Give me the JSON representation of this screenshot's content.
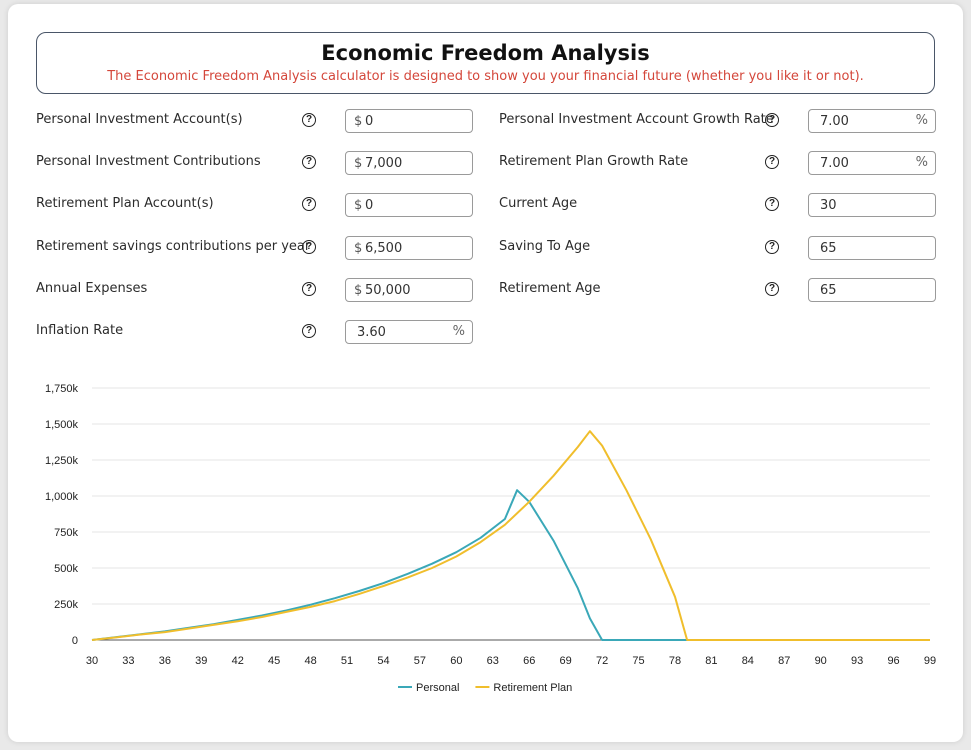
{
  "header": {
    "title": "Economic Freedom Analysis",
    "subtitle": "The Economic Freedom Analysis calculator is designed to show you your financial future (whether you like it or not)."
  },
  "help_glyph": "?",
  "fields": {
    "personal_investment": {
      "label": "Personal Investment Account(s)",
      "prefix": "$",
      "value": "0",
      "suffix": ""
    },
    "personal_contributions": {
      "label": "Personal Investment Contributions",
      "prefix": "$",
      "value": "7,000",
      "suffix": ""
    },
    "retirement_account": {
      "label": "Retirement Plan Account(s)",
      "prefix": "$",
      "value": "0",
      "suffix": ""
    },
    "retirement_contributions": {
      "label": "Retirement savings contributions per year",
      "prefix": "$",
      "value": "6,500",
      "suffix": ""
    },
    "annual_expenses": {
      "label": "Annual Expenses",
      "prefix": "$",
      "value": "50,000",
      "suffix": ""
    },
    "inflation_rate": {
      "label": "Inflation Rate",
      "prefix": "",
      "value": "3.60",
      "suffix": "%"
    },
    "personal_growth_rate": {
      "label": "Personal Investment Account Growth Rate",
      "prefix": "",
      "value": "7.00",
      "suffix": "%"
    },
    "retirement_growth_rate": {
      "label": "Retirement Plan Growth Rate",
      "prefix": "",
      "value": "7.00",
      "suffix": "%"
    },
    "current_age": {
      "label": "Current Age",
      "prefix": "",
      "value": "30",
      "suffix": ""
    },
    "saving_to_age": {
      "label": "Saving To Age",
      "prefix": "",
      "value": "65",
      "suffix": ""
    },
    "retirement_age": {
      "label": "Retirement Age",
      "prefix": "",
      "value": "65",
      "suffix": ""
    }
  },
  "chart_data": {
    "type": "line",
    "title": "",
    "xlabel": "",
    "ylabel": "",
    "xlim": [
      30,
      99
    ],
    "ylim": [
      0,
      1750
    ],
    "y_ticks": [
      "0",
      "250k",
      "500k",
      "750k",
      "1,000k",
      "1,250k",
      "1,500k",
      "1,750k"
    ],
    "x_ticks": [
      "30",
      "33",
      "36",
      "39",
      "42",
      "45",
      "48",
      "51",
      "54",
      "57",
      "60",
      "63",
      "66",
      "69",
      "72",
      "75",
      "78",
      "81",
      "84",
      "87",
      "90",
      "93",
      "96",
      "99"
    ],
    "grid": "horizontal",
    "legend_position": "bottom",
    "series": [
      {
        "name": "Personal",
        "color": "#3aa8b8",
        "x": [
          30,
          32,
          34,
          36,
          38,
          40,
          42,
          44,
          46,
          48,
          50,
          52,
          54,
          56,
          58,
          60,
          62,
          64,
          65,
          66,
          68,
          70,
          71,
          72,
          75,
          80,
          85,
          90,
          95,
          99
        ],
        "y": [
          0,
          20,
          40,
          60,
          85,
          110,
          140,
          170,
          205,
          245,
          290,
          340,
          395,
          460,
          530,
          610,
          710,
          840,
          1040,
          960,
          690,
          360,
          150,
          0,
          0,
          0,
          0,
          0,
          0,
          0
        ]
      },
      {
        "name": "Retirement Plan",
        "color": "#f0be2c",
        "x": [
          30,
          32,
          34,
          36,
          38,
          40,
          42,
          44,
          46,
          48,
          50,
          52,
          54,
          56,
          58,
          60,
          62,
          64,
          66,
          68,
          70,
          71,
          72,
          74,
          76,
          78,
          79,
          80,
          85,
          90,
          95,
          99
        ],
        "y": [
          0,
          18,
          38,
          55,
          80,
          105,
          130,
          160,
          195,
          230,
          270,
          320,
          375,
          435,
          500,
          580,
          680,
          800,
          960,
          1140,
          1340,
          1450,
          1350,
          1040,
          700,
          300,
          0,
          0,
          0,
          0,
          0,
          0
        ]
      }
    ]
  }
}
